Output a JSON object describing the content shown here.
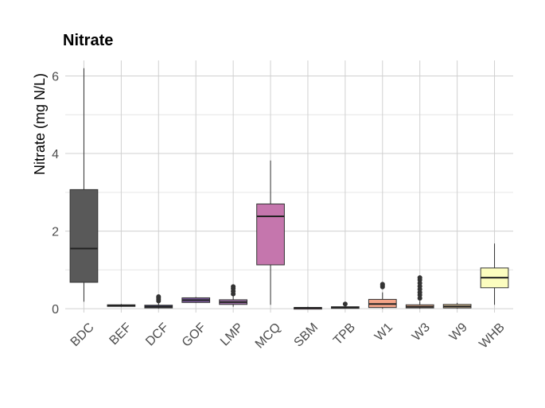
{
  "chart_data": {
    "type": "boxplot",
    "title": "Nitrate",
    "xlabel": "",
    "ylabel": "Nitrate (mg N/L)",
    "ylim": [
      -0.1,
      6.4
    ],
    "yticks": [
      0,
      2,
      4,
      6
    ],
    "grid": true,
    "legend": "none",
    "categories": [
      "BDC",
      "BEF",
      "DCF",
      "GOF",
      "LMP",
      "MCQ",
      "SBM",
      "TPB",
      "W1",
      "W3",
      "W9",
      "WHB"
    ],
    "boxes": [
      {
        "min": 0.18,
        "q1": 0.68,
        "median": 1.55,
        "q3": 3.07,
        "max": 6.2,
        "outliers": [],
        "color": "#595959"
      },
      {
        "min": 0.05,
        "q1": 0.06,
        "median": 0.08,
        "q3": 0.1,
        "max": 0.12,
        "outliers": [],
        "color": "#463a6e"
      },
      {
        "min": 0.0,
        "q1": 0.02,
        "median": 0.05,
        "q3": 0.09,
        "max": 0.18,
        "outliers": [
          0.2,
          0.24,
          0.28,
          0.31
        ],
        "color": "#3f3f74"
      },
      {
        "min": 0.15,
        "q1": 0.16,
        "median": 0.22,
        "q3": 0.28,
        "max": 0.3,
        "outliers": [],
        "color": "#7e5b9f"
      },
      {
        "min": 0.05,
        "q1": 0.11,
        "median": 0.17,
        "q3": 0.23,
        "max": 0.33,
        "outliers": [
          0.38,
          0.45,
          0.52,
          0.57
        ],
        "color": "#9a6fa3"
      },
      {
        "min": 0.1,
        "q1": 1.13,
        "median": 2.38,
        "q3": 2.7,
        "max": 3.82,
        "outliers": [],
        "color": "#c576ad"
      },
      {
        "min": 0.0,
        "q1": 0.01,
        "median": 0.02,
        "q3": 0.03,
        "max": 0.05,
        "outliers": [],
        "color": "#d178a6"
      },
      {
        "min": 0.0,
        "q1": 0.01,
        "median": 0.03,
        "q3": 0.05,
        "max": 0.08,
        "outliers": [
          0.12
        ],
        "color": "#de7f9b"
      },
      {
        "min": 0.0,
        "q1": 0.03,
        "median": 0.12,
        "q3": 0.24,
        "max": 0.42,
        "outliers": [
          0.56,
          0.6,
          0.63
        ],
        "color": "#f4a488"
      },
      {
        "min": 0.0,
        "q1": 0.02,
        "median": 0.05,
        "q3": 0.1,
        "max": 0.2,
        "outliers": [
          0.27,
          0.35,
          0.42,
          0.5,
          0.58,
          0.66,
          0.74,
          0.8
        ],
        "color": "#f5b894"
      },
      {
        "min": 0.0,
        "q1": 0.02,
        "median": 0.06,
        "q3": 0.11,
        "max": 0.15,
        "outliers": [],
        "color": "#f7d8a8"
      },
      {
        "min": 0.1,
        "q1": 0.54,
        "median": 0.8,
        "q3": 1.05,
        "max": 1.68,
        "outliers": [],
        "color": "#fcfdbf"
      }
    ]
  }
}
